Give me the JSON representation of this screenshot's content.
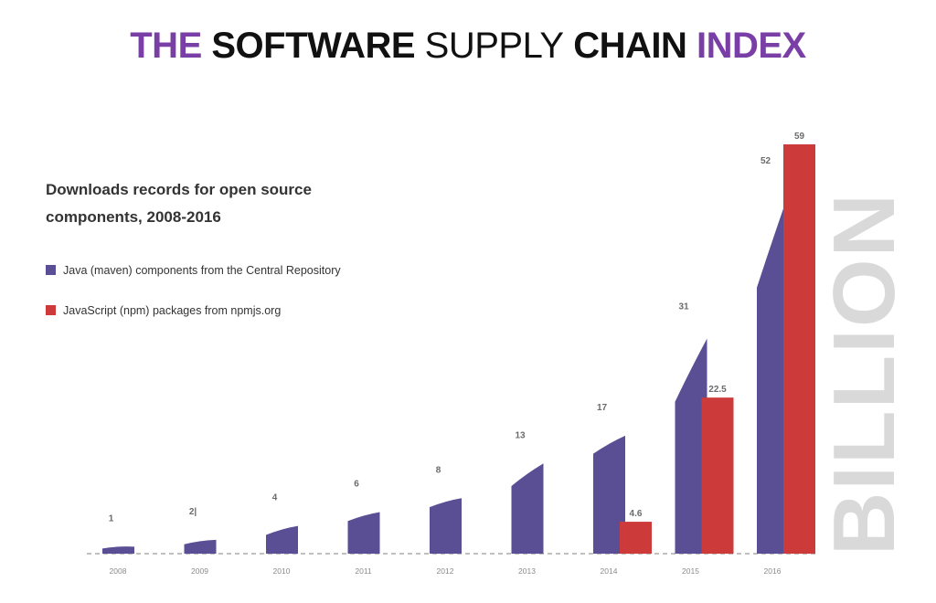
{
  "header": {
    "title_words": [
      "THE",
      "SOFTWARE",
      "SUPPLY",
      "CHAIN",
      "INDEX"
    ]
  },
  "colors": {
    "java": "#5a4f95",
    "npm": "#cc3a3a",
    "title_accent": "#7a3fa6",
    "unit_text": "#d9d9d9",
    "baseline": "#9a9a9a"
  },
  "chart_data": {
    "type": "bar",
    "title": "THE SOFTWARE SUPPLY CHAIN INDEX",
    "subtitle_lines": [
      "Downloads records for open source",
      "components, 2008-2016"
    ],
    "unit_label": "BILLION",
    "categories": [
      "2008",
      "2009",
      "2010",
      "2011",
      "2012",
      "2013",
      "2014",
      "2015",
      "2016"
    ],
    "series": [
      {
        "name": "Java (maven) components from the Central Repository",
        "values": [
          1,
          2,
          4,
          6,
          8,
          13,
          17,
          31,
          52
        ],
        "labels": [
          "1",
          "2|",
          "4",
          "6",
          "8",
          "13",
          "17",
          "31",
          "52"
        ]
      },
      {
        "name": "JavaScript (npm) packages from npmjs.org",
        "values": [
          null,
          null,
          null,
          null,
          null,
          null,
          4.6,
          22.5,
          59
        ],
        "labels": [
          "",
          "",
          "",
          "",
          "",
          "",
          "4.6",
          "22.5",
          "59"
        ]
      }
    ],
    "ylim": [
      0,
      59
    ],
    "grid": false,
    "legend_position": "top-left"
  }
}
